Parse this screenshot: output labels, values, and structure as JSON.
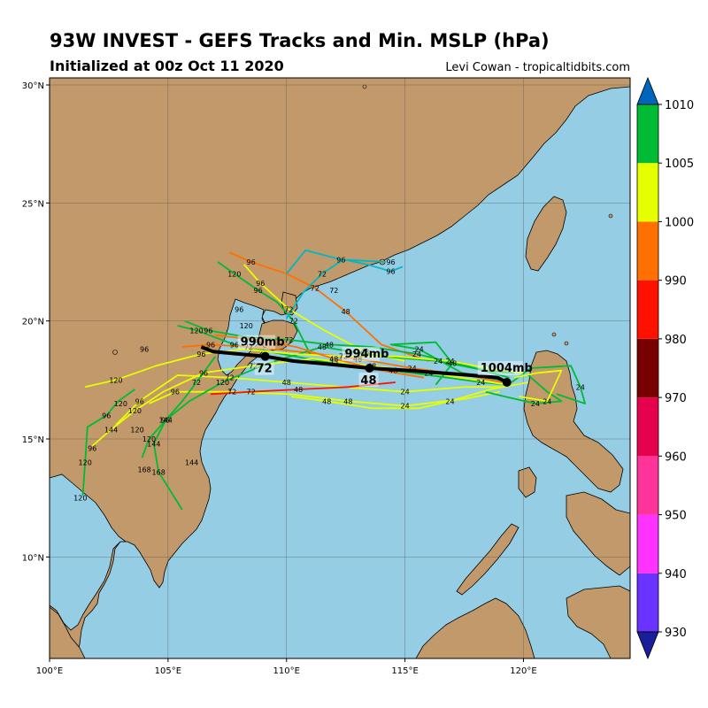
{
  "header": {
    "title": "93W INVEST - GEFS Tracks and Min. MSLP (hPa)",
    "subtitle": "Initialized at 00z Oct 11 2020",
    "credit": "Levi Cowan - tropicaltidbits.com"
  },
  "map": {
    "lon_range": [
      100,
      124.5
    ],
    "lat_range": [
      5.7,
      30.3
    ],
    "colors": {
      "ocean": "#94cde4",
      "land": "#c1996a",
      "coast": "#000000",
      "grid": "#555555"
    },
    "lon_ticks": [
      {
        "value": 100,
        "label": "100°E"
      },
      {
        "value": 105,
        "label": "105°E"
      },
      {
        "value": 110,
        "label": "110°E"
      },
      {
        "value": 115,
        "label": "115°E"
      },
      {
        "value": 120,
        "label": "120°E"
      }
    ],
    "lat_ticks": [
      {
        "value": 10,
        "label": "10°N"
      },
      {
        "value": 15,
        "label": "15°N"
      },
      {
        "value": 20,
        "label": "20°N"
      },
      {
        "value": 25,
        "label": "25°N"
      },
      {
        "value": 30,
        "label": "30°N"
      }
    ]
  },
  "colorbar": {
    "levels": [
      {
        "value": 930,
        "color": "#6a33ff"
      },
      {
        "value": 940,
        "color": "#ff33ff"
      },
      {
        "value": 950,
        "color": "#ff3399"
      },
      {
        "value": 960,
        "color": "#e6004d"
      },
      {
        "value": 970,
        "color": "#780000"
      },
      {
        "value": 980,
        "color": "#ff1100"
      },
      {
        "value": 990,
        "color": "#ff7000"
      },
      {
        "value": 1000,
        "color": "#e6ff00"
      },
      {
        "value": 1005,
        "color": "#00bb33"
      },
      {
        "value": 1010,
        "color": "#00b7c3"
      }
    ],
    "under_color": "#1a1e99",
    "over_color": "#0066bb",
    "tick_labels": [
      "930",
      "940",
      "950",
      "960",
      "970",
      "980",
      "990",
      "1000",
      "1005",
      "1010"
    ]
  },
  "ensemble_mean": {
    "track": [
      [
        119.3,
        17.4
      ],
      [
        118.9,
        17.6
      ],
      [
        117.8,
        17.7
      ],
      [
        115.2,
        17.9
      ],
      [
        113.5,
        18.0
      ],
      [
        111.5,
        18.2
      ],
      [
        110.3,
        18.3
      ],
      [
        109.1,
        18.5
      ],
      [
        108.0,
        18.6
      ],
      [
        106.9,
        18.7
      ],
      [
        106.4,
        18.9
      ]
    ],
    "markers": [
      {
        "lon": 119.3,
        "lat": 17.4,
        "pressure": "1004mb",
        "hour": "",
        "dx": -30,
        "dy": -12
      },
      {
        "lon": 113.5,
        "lat": 18.0,
        "pressure": "994mb",
        "hour": "48",
        "dx": -28,
        "dy": -12
      },
      {
        "lon": 109.1,
        "lat": 18.5,
        "pressure": "990mb",
        "hour": "72",
        "dx": -28,
        "dy": -12
      }
    ]
  },
  "members": [
    {
      "color": "#00bb33",
      "hour_labels": [
        "24",
        "48",
        "72",
        "96",
        "120"
      ],
      "track": [
        [
          119.3,
          17.3
        ],
        [
          118.2,
          17.4
        ],
        [
          116.8,
          17.6
        ],
        [
          114.5,
          17.9
        ],
        [
          112.0,
          18.2
        ],
        [
          109.8,
          18.6
        ],
        [
          107.8,
          19.0
        ],
        [
          106.2,
          19.6
        ],
        [
          105.4,
          19.8
        ]
      ]
    },
    {
      "color": "#e6ff00",
      "hour_labels": [
        "24",
        "48",
        "72",
        "96",
        "120",
        "144"
      ],
      "track": [
        [
          119.3,
          17.3
        ],
        [
          118.0,
          17.5
        ],
        [
          116.0,
          17.8
        ],
        [
          113.6,
          18.1
        ],
        [
          111.1,
          18.4
        ],
        [
          108.6,
          18.1
        ],
        [
          106.5,
          17.8
        ],
        [
          104.8,
          17.0
        ],
        [
          103.6,
          16.2
        ],
        [
          102.6,
          15.4
        ],
        [
          101.8,
          14.7
        ]
      ]
    },
    {
      "color": "#e6ff00",
      "hour_labels": [
        "24",
        "48",
        "72",
        "96"
      ],
      "track": [
        [
          119.2,
          17.2
        ],
        [
          117.5,
          17.2
        ],
        [
          115.0,
          17.0
        ],
        [
          112.4,
          17.2
        ],
        [
          110.0,
          17.4
        ],
        [
          107.6,
          17.6
        ],
        [
          105.4,
          17.7
        ],
        [
          103.8,
          16.6
        ],
        [
          102.8,
          15.6
        ]
      ]
    },
    {
      "color": "#ff7000",
      "hour_labels": [
        "24",
        "48",
        "72",
        "96"
      ],
      "track": [
        [
          119.1,
          17.4
        ],
        [
          117.6,
          17.7
        ],
        [
          115.3,
          18.0
        ],
        [
          113.0,
          18.4
        ],
        [
          110.5,
          18.7
        ],
        [
          108.4,
          18.9
        ],
        [
          106.8,
          19.0
        ],
        [
          105.6,
          18.9
        ]
      ]
    },
    {
      "color": "#ff7000",
      "hour_labels": [
        "48",
        "72",
        "96"
      ],
      "track": [
        [
          116.0,
          18.3
        ],
        [
          114.0,
          19.0
        ],
        [
          112.5,
          20.4
        ],
        [
          111.2,
          21.4
        ],
        [
          110.0,
          22.0
        ],
        [
          108.5,
          22.5
        ],
        [
          107.6,
          22.9
        ]
      ]
    },
    {
      "color": "#e6ff00",
      "hour_labels": [
        "48",
        "72",
        "96"
      ],
      "track": [
        [
          115.0,
          18.3
        ],
        [
          113.3,
          18.7
        ],
        [
          111.6,
          19.6
        ],
        [
          110.1,
          20.5
        ],
        [
          108.9,
          21.6
        ],
        [
          108.2,
          22.4
        ]
      ]
    },
    {
      "color": "#00bb33",
      "hour_labels": [
        "72",
        "96",
        "120"
      ],
      "track": [
        [
          111.0,
          18.6
        ],
        [
          110.3,
          20.0
        ],
        [
          109.6,
          20.8
        ],
        [
          108.8,
          21.3
        ],
        [
          107.8,
          22.0
        ],
        [
          107.1,
          22.5
        ]
      ]
    },
    {
      "color": "#00b7c3",
      "hour_labels": [
        "72",
        "96"
      ],
      "track": [
        [
          110.0,
          20.1
        ],
        [
          110.7,
          21.2
        ],
        [
          111.5,
          22.0
        ],
        [
          112.4,
          22.6
        ],
        [
          113.4,
          22.4
        ],
        [
          114.4,
          22.1
        ],
        [
          114.9,
          22.3
        ]
      ]
    },
    {
      "color": "#00b7c3",
      "hour_labels": [
        "96"
      ],
      "track": [
        [
          110.0,
          22.0
        ],
        [
          110.8,
          23.0
        ],
        [
          112.3,
          22.6
        ],
        [
          114.2,
          22.5
        ]
      ]
    },
    {
      "color": "#e6ff00",
      "hour_labels": [
        "24",
        "48",
        "72",
        "96"
      ],
      "track": [
        [
          119.0,
          17.0
        ],
        [
          117.5,
          16.7
        ],
        [
          115.0,
          16.4
        ],
        [
          112.6,
          16.6
        ],
        [
          110.1,
          16.9
        ],
        [
          107.7,
          17.0
        ],
        [
          105.3,
          17.0
        ],
        [
          104.2,
          16.5
        ]
      ]
    },
    {
      "color": "#ff1100",
      "hour_labels": [
        "48",
        "72"
      ],
      "track": [
        [
          114.6,
          17.4
        ],
        [
          112.6,
          17.2
        ],
        [
          110.5,
          17.1
        ],
        [
          108.5,
          17.0
        ],
        [
          106.8,
          16.9
        ]
      ]
    },
    {
      "color": "#00bb33",
      "hour_labels": [
        "24",
        "48",
        "120",
        "144",
        "168"
      ],
      "track": [
        [
          119.6,
          17.8
        ],
        [
          118.4,
          17.9
        ],
        [
          116.4,
          18.3
        ],
        [
          114.0,
          18.5
        ],
        [
          111.5,
          18.9
        ],
        [
          109.2,
          18.2
        ],
        [
          107.3,
          17.4
        ],
        [
          105.9,
          16.6
        ],
        [
          104.9,
          15.8
        ],
        [
          104.4,
          14.8
        ],
        [
          104.6,
          13.6
        ],
        [
          105.6,
          12.0
        ]
      ]
    },
    {
      "color": "#00bb33",
      "hour_labels": [
        "72",
        "96",
        "120"
      ],
      "track": [
        [
          107.0,
          18.5
        ],
        [
          106.2,
          17.4
        ],
        [
          105.6,
          16.6
        ],
        [
          104.9,
          15.8
        ],
        [
          104.2,
          15.0
        ],
        [
          103.9,
          14.2
        ]
      ]
    },
    {
      "color": "#00bb33",
      "hour_labels": [
        "96",
        "120"
      ],
      "track": [
        [
          103.6,
          17.1
        ],
        [
          102.9,
          16.6
        ],
        [
          102.4,
          16.0
        ],
        [
          101.6,
          15.5
        ],
        [
          101.5,
          14.0
        ],
        [
          101.4,
          12.6
        ]
      ]
    },
    {
      "color": "#00bb33",
      "hour_labels": [
        "24",
        "48",
        "72",
        "96"
      ],
      "track": [
        [
          119.4,
          17.6
        ],
        [
          117.6,
          18.1
        ],
        [
          115.5,
          18.6
        ],
        [
          113.6,
          18.9
        ],
        [
          111.8,
          19.0
        ],
        [
          110.1,
          19.2
        ],
        [
          108.4,
          19.3
        ],
        [
          106.7,
          19.6
        ],
        [
          105.7,
          20.0
        ]
      ]
    },
    {
      "color": "#e6ff00",
      "hour_labels": [
        "24",
        "72",
        "96",
        "120"
      ],
      "track": [
        [
          120.0,
          17.8
        ],
        [
          118.5,
          18.0
        ],
        [
          116.9,
          18.3
        ],
        [
          114.6,
          18.5
        ],
        [
          112.4,
          18.5
        ],
        [
          110.3,
          18.6
        ],
        [
          108.2,
          18.8
        ],
        [
          106.4,
          18.6
        ],
        [
          104.5,
          18.1
        ],
        [
          102.8,
          17.5
        ],
        [
          101.5,
          17.2
        ]
      ]
    },
    {
      "color": "#00bb33",
      "hour_labels": [
        "24"
      ],
      "track": [
        [
          120.2,
          17.7
        ],
        [
          121.0,
          17.0
        ],
        [
          121.6,
          16.6
        ],
        [
          120.5,
          16.5
        ],
        [
          119.2,
          16.8
        ],
        [
          118.4,
          17.0
        ]
      ]
    },
    {
      "color": "#00bb33",
      "hour_labels": [
        "24"
      ],
      "track": [
        [
          119.5,
          17.4
        ],
        [
          120.3,
          18.0
        ],
        [
          122.0,
          18.1
        ],
        [
          122.4,
          17.2
        ],
        [
          122.6,
          16.5
        ],
        [
          121.4,
          16.9
        ]
      ]
    },
    {
      "color": "#e6ff00",
      "hour_labels": [
        "24"
      ],
      "track": [
        [
          119.6,
          17.6
        ],
        [
          120.6,
          17.8
        ],
        [
          121.6,
          17.9
        ],
        [
          121.0,
          16.6
        ],
        [
          119.8,
          16.8
        ]
      ]
    },
    {
      "color": "#ff7000",
      "hour_labels": [
        "48",
        "72"
      ],
      "track": [
        [
          115.8,
          17.6
        ],
        [
          114.0,
          17.9
        ],
        [
          112.0,
          18.4
        ],
        [
          110.4,
          18.9
        ],
        [
          108.7,
          19.2
        ],
        [
          107.0,
          19.4
        ]
      ]
    },
    {
      "color": "#00bb33",
      "hour_labels": [
        "24",
        "48"
      ],
      "track": [
        [
          119.0,
          17.5
        ],
        [
          117.4,
          17.8
        ],
        [
          115.6,
          18.8
        ],
        [
          114.4,
          19.0
        ],
        [
          116.3,
          19.1
        ],
        [
          117.0,
          18.2
        ],
        [
          116.3,
          17.3
        ]
      ]
    },
    {
      "color": "#e6ff00",
      "hour_labels": [
        "24",
        "48"
      ],
      "track": [
        [
          120.2,
          17.4
        ],
        [
          118.6,
          17.1
        ],
        [
          116.9,
          16.6
        ],
        [
          115.6,
          16.3
        ],
        [
          113.6,
          16.3
        ],
        [
          111.7,
          16.6
        ],
        [
          110.2,
          16.8
        ]
      ]
    }
  ],
  "free_labels": [
    {
      "text": "120",
      "lon": 101.3,
      "lat": 12.5
    },
    {
      "text": "96",
      "lon": 101.8,
      "lat": 14.6
    },
    {
      "text": "120",
      "lon": 103.0,
      "lat": 16.5
    },
    {
      "text": "120",
      "lon": 103.7,
      "lat": 15.4
    },
    {
      "text": "144",
      "lon": 104.4,
      "lat": 14.8
    },
    {
      "text": "144",
      "lon": 106.0,
      "lat": 14.0
    },
    {
      "text": "168",
      "lon": 104.0,
      "lat": 13.7
    },
    {
      "text": "96",
      "lon": 104.0,
      "lat": 18.8
    },
    {
      "text": "96",
      "lon": 108.0,
      "lat": 20.5
    },
    {
      "text": "120",
      "lon": 108.3,
      "lat": 19.8
    },
    {
      "text": "96",
      "lon": 114.4,
      "lat": 22.5
    },
    {
      "text": "72",
      "lon": 112.0,
      "lat": 21.3
    }
  ]
}
